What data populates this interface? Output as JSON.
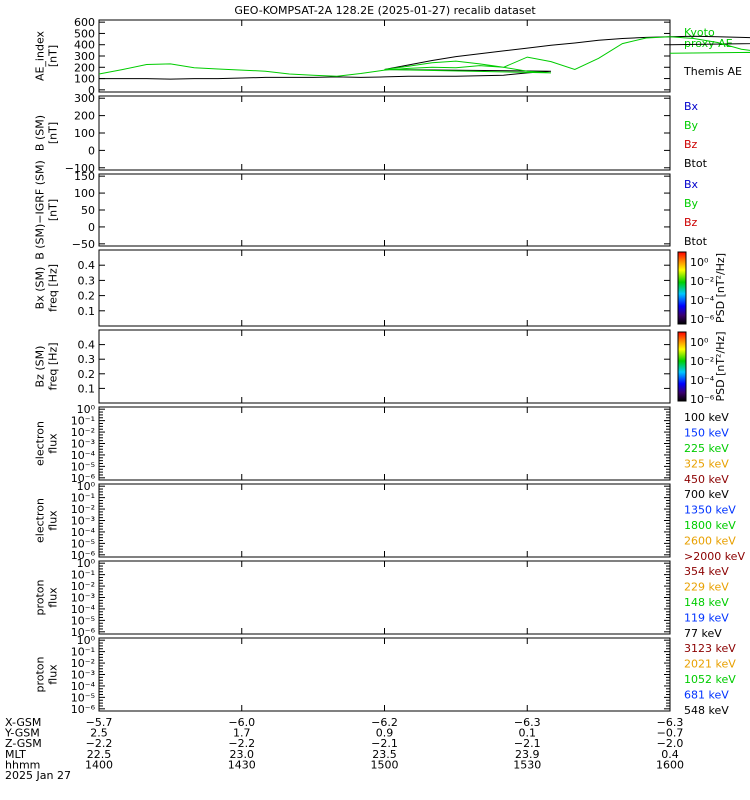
{
  "title": "GEO-KOMPSAT-2A 128.2E (2025-01-27) recalib dataset",
  "colors": {
    "black": "#000000",
    "blue": "#0000cc",
    "green": "#00cc00",
    "red": "#cc0000",
    "orange": "#e8a000",
    "darkred": "#8b0000",
    "royal": "#0033ff"
  },
  "chart_data": [
    {
      "type": "line",
      "ylabel_lines": [
        "AE_index",
        "[nT]"
      ],
      "yticks": [
        "600",
        "500",
        "400",
        "300",
        "200",
        "100",
        "0"
      ],
      "ylim": [
        0,
        600
      ],
      "xlim": [
        1400,
        1600
      ],
      "legend": [
        {
          "text": "Kyoto",
          "color": "green"
        },
        {
          "text": "proxy AE",
          "color": "green"
        },
        {
          "text": "Themis AE",
          "color": "black"
        }
      ],
      "series": [
        {
          "name": "Themis AE",
          "color": "black",
          "x": [
            1400,
            1405,
            1410,
            1415,
            1420,
            1425,
            1430,
            1435,
            1440,
            1445,
            1450,
            1455,
            1460,
            1465,
            1470,
            1475,
            1480,
            1485,
            1490,
            1495,
            1500,
            1505,
            1510,
            1515,
            1520,
            1525,
            1530,
            1535,
            1540,
            1545,
            1550,
            1555,
            1560,
            1565,
            1570,
            1575,
            1580,
            1585,
            1590,
            1595,
            1600
          ],
          "values": [
            100,
            100,
            100,
            95,
            100,
            100,
            105,
            110,
            110,
            110,
            115,
            110,
            115,
            120,
            120,
            120,
            125,
            130,
            150,
            165,
            180,
            220,
            260,
            295,
            320,
            345,
            370,
            395,
            415,
            440,
            455,
            465,
            470,
            475,
            470,
            465,
            460,
            450,
            440,
            420,
            400
          ]
        },
        {
          "name": "proxy AE",
          "color": "green",
          "x": [
            1400,
            1405,
            1410,
            1415,
            1420,
            1425,
            1430,
            1435,
            1440,
            1445,
            1450,
            1455,
            1460,
            1465,
            1470,
            1475,
            1480,
            1485,
            1490,
            1495,
            1500,
            1505,
            1510,
            1515,
            1520,
            1525,
            1530,
            1535,
            1540,
            1545,
            1550,
            1555,
            1560,
            1565,
            1570,
            1575,
            1580,
            1585,
            1590,
            1595,
            1600
          ],
          "values": [
            140,
            180,
            225,
            230,
            195,
            185,
            175,
            165,
            140,
            130,
            120,
            145,
            175,
            190,
            200,
            195,
            215,
            200,
            165,
            150,
            180,
            210,
            240,
            255,
            230,
            200,
            290,
            250,
            180,
            280,
            410,
            460,
            470,
            455,
            420,
            360,
            330,
            350,
            310,
            340,
            325
          ]
        }
      ]
    },
    {
      "type": "line",
      "ylabel_lines": [
        "B (SM)",
        "[nT]"
      ],
      "yticks": [
        "300",
        "200",
        "100",
        "0",
        "−100"
      ],
      "ylim": [
        -100,
        300
      ],
      "legend": [
        {
          "text": "Bx",
          "color": "blue"
        },
        {
          "text": "By",
          "color": "green"
        },
        {
          "text": "Bz",
          "color": "red"
        },
        {
          "text": "Btot",
          "color": "black"
        }
      ],
      "series": []
    },
    {
      "type": "line",
      "ylabel_lines": [
        "B (SM)−IGRF (SM)",
        "[nT]"
      ],
      "yticks": [
        "150",
        "100",
        "50",
        "0",
        "−50"
      ],
      "ylim": [
        -50,
        150
      ],
      "legend": [
        {
          "text": "Bx",
          "color": "blue"
        },
        {
          "text": "By",
          "color": "green"
        },
        {
          "text": "Bz",
          "color": "red"
        },
        {
          "text": "Btot",
          "color": "black"
        }
      ],
      "series": []
    },
    {
      "type": "heatmap",
      "ylabel_lines": [
        "Bx (SM)",
        "freq [Hz]"
      ],
      "yticks": [
        "0.4",
        "0.3",
        "0.2",
        "0.1"
      ],
      "ylim": [
        0,
        0.5
      ],
      "colorbar_ticks": [
        "10⁰",
        "10⁻²",
        "10⁻⁴",
        "10⁻⁶"
      ],
      "colorbar_label": "PSD [nT²/Hz]",
      "legend": []
    },
    {
      "type": "heatmap",
      "ylabel_lines": [
        "Bz (SM)",
        "freq [Hz]"
      ],
      "yticks": [
        "0.4",
        "0.3",
        "0.2",
        "0.1"
      ],
      "ylim": [
        0,
        0.5
      ],
      "colorbar_ticks": [
        "10⁰",
        "10⁻²",
        "10⁻⁴",
        "10⁻⁶"
      ],
      "colorbar_label": "PSD [nT²/Hz]",
      "legend": []
    },
    {
      "type": "line",
      "ylabel_lines": [
        "electron",
        "flux"
      ],
      "yticks": [
        "10⁰",
        "10⁻¹",
        "10⁻²",
        "10⁻³",
        "10⁻⁴",
        "10⁻⁵",
        "10⁻⁶"
      ],
      "legend": [
        {
          "text": "100 keV",
          "color": "black"
        },
        {
          "text": "150 keV",
          "color": "royal"
        },
        {
          "text": "225 keV",
          "color": "green"
        },
        {
          "text": "325 keV",
          "color": "orange"
        },
        {
          "text": "450 keV",
          "color": "darkred"
        }
      ],
      "series": []
    },
    {
      "type": "line",
      "ylabel_lines": [
        "electron",
        "flux"
      ],
      "yticks": [
        "10⁰",
        "10⁻¹",
        "10⁻²",
        "10⁻³",
        "10⁻⁴",
        "10⁻⁵",
        "10⁻⁶"
      ],
      "legend": [
        {
          "text": "700 keV",
          "color": "black"
        },
        {
          "text": "1350 keV",
          "color": "royal"
        },
        {
          "text": "1800 keV",
          "color": "green"
        },
        {
          "text": "2600 keV",
          "color": "orange"
        },
        {
          "text": ">2000 keV",
          "color": "darkred"
        }
      ],
      "series": []
    },
    {
      "type": "line",
      "ylabel_lines": [
        "proton",
        "flux"
      ],
      "yticks": [
        "10⁰",
        "10⁻¹",
        "10⁻²",
        "10⁻³",
        "10⁻⁴",
        "10⁻⁵",
        "10⁻⁶"
      ],
      "legend": [
        {
          "text": "354 keV",
          "color": "darkred"
        },
        {
          "text": "229 keV",
          "color": "orange"
        },
        {
          "text": "148 keV",
          "color": "green"
        },
        {
          "text": "119 keV",
          "color": "royal"
        },
        {
          "text": "77 keV",
          "color": "black"
        }
      ],
      "series": []
    },
    {
      "type": "line",
      "ylabel_lines": [
        "proton",
        "flux"
      ],
      "yticks": [
        "10⁰",
        "10⁻¹",
        "10⁻²",
        "10⁻³",
        "10⁻⁴",
        "10⁻⁵",
        "10⁻⁶"
      ],
      "legend": [
        {
          "text": "3123 keV",
          "color": "darkred"
        },
        {
          "text": "2021 keV",
          "color": "orange"
        },
        {
          "text": "1052 keV",
          "color": "green"
        },
        {
          "text": "681 keV",
          "color": "royal"
        },
        {
          "text": "548 keV",
          "color": "black"
        }
      ],
      "series": []
    }
  ],
  "xaxis": {
    "row_labels": [
      "X-GSM",
      "Y-GSM",
      "Z-GSM",
      "MLT",
      "hhmm",
      "2025 Jan 27"
    ],
    "columns": [
      {
        "vals": [
          "−5.7",
          "2.5",
          "−2.2",
          "22.5",
          "1400"
        ]
      },
      {
        "vals": [
          "−6.0",
          "1.7",
          "−2.2",
          "23.0",
          "1430"
        ]
      },
      {
        "vals": [
          "−6.2",
          "0.9",
          "−2.1",
          "23.5",
          "1500"
        ]
      },
      {
        "vals": [
          "−6.3",
          "0.1",
          "−2.1",
          "23.9",
          "1530"
        ]
      },
      {
        "vals": [
          "−6.3",
          "−0.7",
          "−2.0",
          "0.4",
          "1600"
        ]
      }
    ]
  }
}
